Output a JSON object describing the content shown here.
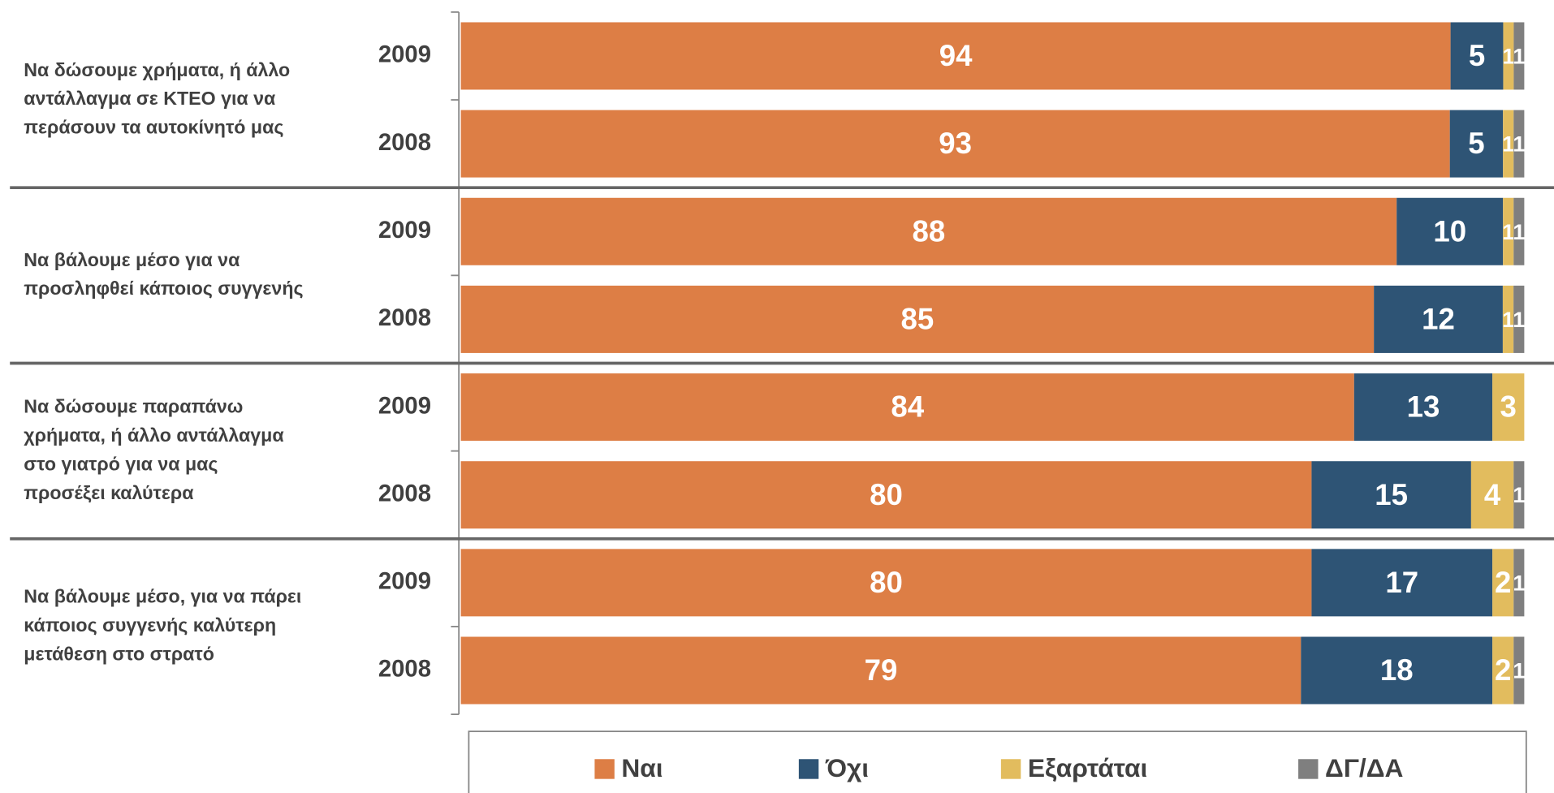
{
  "chart_data": {
    "type": "bar",
    "orientation": "horizontal",
    "stacked": "percent",
    "groups": [
      {
        "label": [
          "Να δώσουμε χρήματα, ή άλλο",
          "αντάλλαγμα σε ΚΤΕΟ για να",
          "περάσουν τα αυτοκίνητό μας"
        ]
      },
      {
        "label": [
          "Να βάλουμε μέσο για να",
          "προσληφθεί κάποιος συγγενής"
        ]
      },
      {
        "label": [
          "Να δώσουμε παραπάνω",
          "χρήματα, ή άλλο αντάλλαγμα",
          "στο γιατρό για να μας",
          "προσέξει καλύτερα"
        ]
      },
      {
        "label": [
          "Να βάλουμε μέσο, για να πάρει",
          "κάποιος συγγενής καλύτερη",
          "μετάθεση στο στρατό"
        ]
      }
    ],
    "categories": [
      "2009",
      "2008",
      "2009",
      "2008",
      "2009",
      "2008",
      "2009",
      "2008"
    ],
    "series": [
      {
        "name": "Ναι",
        "color": "#dd7e45",
        "values": [
          94,
          93,
          88,
          85,
          84,
          80,
          80,
          79
        ]
      },
      {
        "name": "Όχι",
        "color": "#2e5475",
        "values": [
          5,
          5,
          10,
          12,
          13,
          15,
          17,
          18
        ]
      },
      {
        "name": "Εξαρτάται",
        "color": "#e2bc5e",
        "values": [
          1,
          1,
          1,
          1,
          3,
          4,
          2,
          2
        ]
      },
      {
        "name": "ΔΓ/ΔΑ",
        "color": "#7f7f7f",
        "values": [
          1,
          1,
          1,
          1,
          null,
          1,
          1,
          1
        ]
      }
    ],
    "legend": "bottom"
  }
}
